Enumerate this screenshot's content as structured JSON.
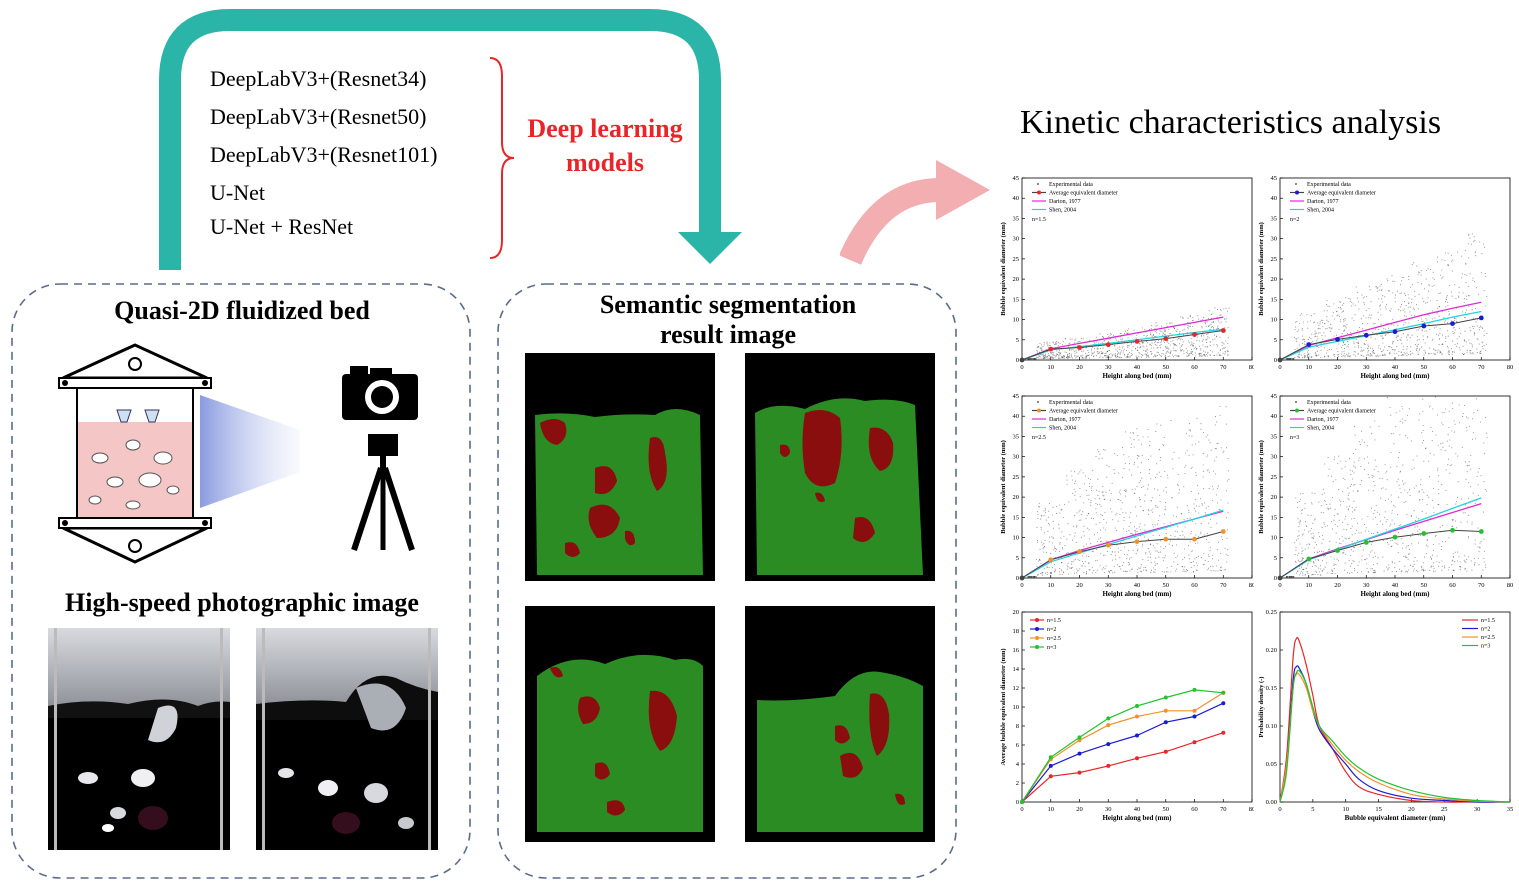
{
  "models": {
    "items": [
      "DeepLabV3+(Resnet34)",
      "DeepLabV3+(Resnet50)",
      "DeepLabV3+(Resnet101)",
      "U-Net",
      "U-Net + ResNet"
    ],
    "group_label_line1": "Deep learning",
    "group_label_line2": "models"
  },
  "panels": {
    "left_title": "Quasi-2D fluidized bed",
    "left_subtitle": "High-speed photographic image",
    "middle_title_line1": "Semantic  segmentation",
    "middle_title_line2": "result image",
    "right_title": "Kinetic characteristics analysis"
  },
  "colors": {
    "arrow_teal": "#2bb5a8",
    "arrow_pink": "#f2aeb0",
    "label_red": "#e8262a",
    "seg_green": "#2a8c22",
    "seg_red": "#8a0e0e",
    "dash_border": "#5a6c8a"
  },
  "chart_common": {
    "xlabel": "Height along bed (mm)",
    "ylabel": "Bubble equivalent diameter (mm)",
    "legend": [
      "Experimental data",
      "Average equivalent diameter",
      "Darton, 1977",
      "Shen, 2004"
    ],
    "x_ticks": [
      "0",
      "10",
      "20",
      "30",
      "40",
      "50",
      "60",
      "70",
      "80"
    ],
    "y_ticks": [
      "0",
      "5",
      "10",
      "15",
      "20",
      "25",
      "30",
      "35",
      "40",
      "45"
    ]
  },
  "chart_data": [
    {
      "type": "scatter",
      "n_label": "n=1.5",
      "avg_color": "#e8262a",
      "xlim": [
        0,
        80
      ],
      "ylim": [
        0,
        45
      ],
      "x": [
        0,
        10,
        20,
        30,
        40,
        50,
        60,
        70
      ],
      "average": [
        0,
        2.7,
        3.1,
        3.8,
        4.6,
        5.3,
        6.3,
        7.3
      ],
      "darton": [
        0,
        2.8,
        4.1,
        5.4,
        6.7,
        8.0,
        9.3,
        10.6
      ],
      "shen": [
        0,
        2.5,
        3.3,
        4.1,
        5.0,
        5.9,
        6.8,
        7.6
      ]
    },
    {
      "type": "scatter",
      "n_label": "n=2",
      "avg_color": "#1b1bd6",
      "xlim": [
        0,
        80
      ],
      "ylim": [
        0,
        45
      ],
      "x": [
        0,
        10,
        20,
        30,
        40,
        50,
        60,
        70
      ],
      "average": [
        0,
        3.8,
        5.1,
        6.1,
        7.0,
        8.4,
        9.0,
        10.4
      ],
      "darton": [
        0,
        3.6,
        5.5,
        7.4,
        9.3,
        11.2,
        12.8,
        14.3
      ],
      "shen": [
        0,
        3.2,
        4.6,
        6.0,
        7.5,
        9.0,
        10.6,
        12.0
      ]
    },
    {
      "type": "scatter",
      "n_label": "n=2.5",
      "avg_color": "#f0922a",
      "xlim": [
        0,
        80
      ],
      "ylim": [
        0,
        45
      ],
      "x": [
        0,
        10,
        20,
        30,
        40,
        50,
        60,
        70
      ],
      "average": [
        0,
        4.5,
        6.5,
        8.1,
        9.0,
        9.6,
        9.6,
        11.5
      ],
      "darton": [
        0,
        4.5,
        6.8,
        8.8,
        10.8,
        12.7,
        14.6,
        16.5
      ],
      "shen": [
        0,
        4.0,
        6.2,
        8.3,
        10.4,
        12.5,
        14.6,
        16.8
      ]
    },
    {
      "type": "scatter",
      "n_label": "n=3",
      "avg_color": "#22c32e",
      "xlim": [
        0,
        80
      ],
      "ylim": [
        0,
        45
      ],
      "x": [
        0,
        10,
        20,
        30,
        40,
        50,
        60,
        70
      ],
      "average": [
        0,
        4.7,
        6.8,
        8.8,
        10.1,
        11.0,
        11.8,
        11.5
      ],
      "darton": [
        0,
        4.7,
        7.2,
        9.5,
        11.8,
        14.0,
        16.2,
        18.4
      ],
      "shen": [
        0,
        4.5,
        7.0,
        9.6,
        12.1,
        14.6,
        17.2,
        19.8
      ]
    },
    {
      "type": "line",
      "xlabel": "Height along bed (mm)",
      "ylabel": "Average bubble equivalent diameter (mm)",
      "xlim": [
        0,
        80
      ],
      "ylim": [
        0,
        20
      ],
      "x_ticks": [
        "0",
        "10",
        "20",
        "30",
        "40",
        "50",
        "60",
        "70",
        "80"
      ],
      "y_ticks": [
        "0",
        "2",
        "4",
        "6",
        "8",
        "10",
        "12",
        "14",
        "16",
        "18",
        "20"
      ],
      "x": [
        0,
        10,
        20,
        30,
        40,
        50,
        60,
        70
      ],
      "series": [
        {
          "name": "n=1.5",
          "color": "#e8262a",
          "values": [
            0,
            2.7,
            3.1,
            3.8,
            4.6,
            5.3,
            6.3,
            7.3
          ]
        },
        {
          "name": "n=2",
          "color": "#1b1bd6",
          "values": [
            0,
            3.8,
            5.1,
            6.1,
            7.0,
            8.4,
            9.0,
            10.4
          ]
        },
        {
          "name": "n=2.5",
          "color": "#f0922a",
          "values": [
            0,
            4.5,
            6.5,
            8.1,
            9.0,
            9.6,
            9.6,
            11.5
          ]
        },
        {
          "name": "n=3",
          "color": "#22c32e",
          "values": [
            0,
            4.7,
            6.8,
            8.8,
            10.1,
            11.0,
            11.8,
            11.5
          ]
        }
      ]
    },
    {
      "type": "line",
      "xlabel": "Bubble equivalent diameter (mm)",
      "ylabel": "Probability density (-)",
      "xlim": [
        0,
        35
      ],
      "ylim": [
        0,
        0.25
      ],
      "x_ticks": [
        "0",
        "5",
        "10",
        "15",
        "20",
        "25",
        "30",
        "35"
      ],
      "y_ticks": [
        "0.00",
        "0.05",
        "0.10",
        "0.15",
        "0.20",
        "0.25"
      ],
      "x": [
        0,
        1,
        2,
        2.5,
        3,
        4,
        5,
        6,
        8,
        10,
        12,
        15,
        20,
        25,
        30,
        35
      ],
      "series": [
        {
          "name": "n=1.5",
          "color": "#e8262a",
          "values": [
            0,
            0.06,
            0.19,
            0.215,
            0.21,
            0.18,
            0.14,
            0.1,
            0.07,
            0.04,
            0.02,
            0.01,
            0.002,
            0,
            0,
            0
          ]
        },
        {
          "name": "n=2",
          "color": "#1b1bd6",
          "values": [
            0,
            0.05,
            0.16,
            0.178,
            0.175,
            0.155,
            0.12,
            0.095,
            0.07,
            0.05,
            0.03,
            0.015,
            0.005,
            0.002,
            0,
            0
          ]
        },
        {
          "name": "n=2.5",
          "color": "#f0922a",
          "values": [
            0,
            0.05,
            0.15,
            0.168,
            0.167,
            0.15,
            0.12,
            0.1,
            0.075,
            0.055,
            0.04,
            0.025,
            0.01,
            0.004,
            0.001,
            0
          ]
        },
        {
          "name": "n=3",
          "color": "#22c32e",
          "values": [
            0,
            0.04,
            0.15,
            0.17,
            0.172,
            0.155,
            0.125,
            0.1,
            0.08,
            0.06,
            0.045,
            0.03,
            0.015,
            0.006,
            0.002,
            0
          ]
        }
      ]
    }
  ]
}
